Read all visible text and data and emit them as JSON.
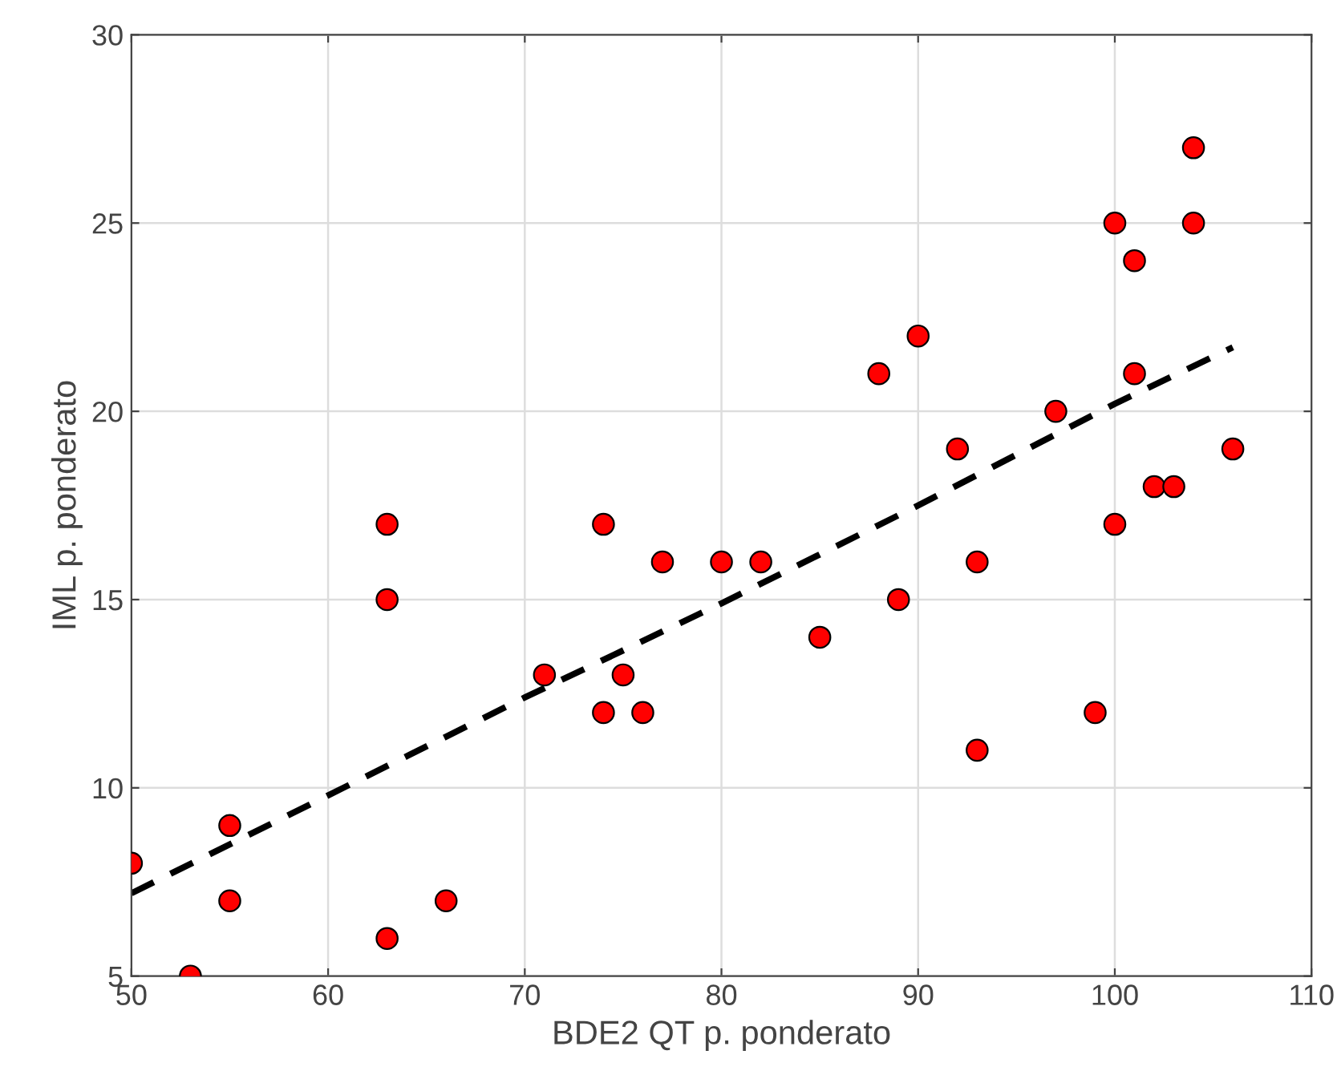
{
  "chart_data": {
    "type": "scatter",
    "xlabel": "BDE2 QT p. ponderato",
    "ylabel": "IML p. ponderato",
    "xlim": [
      50,
      110
    ],
    "ylim": [
      5,
      30
    ],
    "xticks": [
      50,
      60,
      70,
      80,
      90,
      100,
      110
    ],
    "yticks": [
      5,
      10,
      15,
      20,
      25,
      30
    ],
    "grid": true,
    "marker": "circle",
    "series": [
      {
        "color": "#ff0000",
        "x": [
          50,
          53,
          55,
          55,
          63,
          63,
          63,
          66,
          71,
          74,
          74,
          75,
          76,
          77,
          80,
          82,
          85,
          88,
          89,
          90,
          92,
          93,
          93,
          97,
          99,
          100,
          100,
          101,
          101,
          102,
          103,
          104,
          104,
          106
        ],
        "values": [
          8,
          5,
          9,
          7,
          17,
          15,
          6,
          7,
          13,
          17,
          12,
          13,
          12,
          16,
          16,
          16,
          14,
          21,
          15,
          22,
          19,
          16,
          11,
          20,
          12,
          25,
          17,
          24,
          21,
          18,
          18,
          27,
          25,
          19
        ]
      },
      {
        "type": "line",
        "color": "#000000",
        "line_style": "dashed",
        "marker": "none",
        "x": [
          50,
          60,
          70,
          80,
          90,
          100,
          106
        ],
        "values": [
          7.2,
          9.8,
          12.4,
          14.9,
          17.5,
          20.2,
          21.7
        ]
      }
    ]
  }
}
